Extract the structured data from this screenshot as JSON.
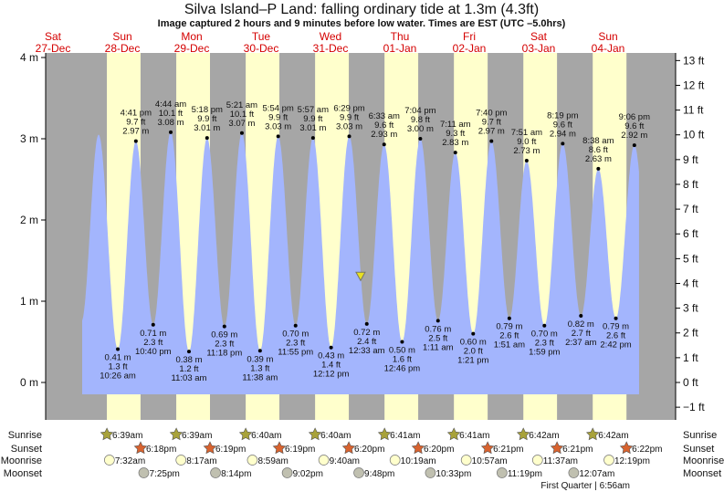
{
  "header": {
    "title": "Silva Island–P Land: falling  ordinary tide at 1.3m (4.3ft)",
    "subtitle": "Image captured 2 hours and 9 minutes before low water. Times are EST (UTC –5.0hrs)"
  },
  "colors": {
    "night": "#a6a6a6",
    "day": "#ffffcc",
    "water": "#a3b5fd",
    "day_label": "#d40000",
    "sunrise": "#a8a23a",
    "sunset": "#d8632f",
    "moonrise": "#ffffcc",
    "moonset": "#c0c0b0",
    "marker": "#e8e020"
  },
  "chart_data": {
    "type": "area",
    "title": "Silva Island–P Land: falling  ordinary tide at 1.3m (4.3ft)",
    "ylabel_left": "m",
    "ylabel_right": "ft",
    "ylim_m": [
      -0.46,
      4.05
    ],
    "left_ticks": [
      "0 m",
      "1 m",
      "2 m",
      "3 m",
      "4 m"
    ],
    "right_ticks": [
      "−1 ft",
      "0 ft",
      "1 ft",
      "2 ft",
      "3 ft",
      "4 ft",
      "5 ft",
      "6 ft",
      "7 ft",
      "8 ft",
      "9 ft",
      "10 ft",
      "11 ft",
      "12 ft",
      "13 ft"
    ],
    "days": [
      {
        "dow": "Sat",
        "date": "27-Dec"
      },
      {
        "dow": "Sun",
        "date": "28-Dec"
      },
      {
        "dow": "Mon",
        "date": "29-Dec"
      },
      {
        "dow": "Tue",
        "date": "30-Dec"
      },
      {
        "dow": "Wed",
        "date": "31-Dec"
      },
      {
        "dow": "Thu",
        "date": "01-Jan"
      },
      {
        "dow": "Fri",
        "date": "02-Jan"
      },
      {
        "dow": "Sat",
        "date": "03-Jan"
      },
      {
        "dow": "Sun",
        "date": "04-Jan"
      }
    ],
    "curve_extent": [
      {
        "date": "27-Dec",
        "time": "9:50 pm",
        "m": 0.75
      },
      {
        "date": "28-Dec",
        "time": "3:47 am",
        "m": 3.05
      },
      {
        "date": "05-Jan",
        "time": "3:15 am",
        "m": 0.85
      }
    ],
    "tides": [
      {
        "type": "low",
        "date": "28-Dec",
        "time": "10:26 am",
        "ft": "1.3 ft",
        "m": 0.41,
        "m_label": "0.41 m"
      },
      {
        "type": "high",
        "date": "28-Dec",
        "time": "4:41 pm",
        "ft": "9.7 ft",
        "m": 2.97,
        "m_label": "2.97 m"
      },
      {
        "type": "low",
        "date": "28-Dec",
        "time": "10:40 pm",
        "ft": "2.3 ft",
        "m": 0.71,
        "m_label": "0.71 m"
      },
      {
        "type": "high",
        "date": "29-Dec",
        "time": "4:44 am",
        "ft": "10.1 ft",
        "m": 3.08,
        "m_label": "3.08 m"
      },
      {
        "type": "low",
        "date": "29-Dec",
        "time": "11:03 am",
        "ft": "1.2 ft",
        "m": 0.38,
        "m_label": "0.38 m"
      },
      {
        "type": "high",
        "date": "29-Dec",
        "time": "5:18 pm",
        "ft": "9.9 ft",
        "m": 3.01,
        "m_label": "3.01 m"
      },
      {
        "type": "low",
        "date": "29-Dec",
        "time": "11:18 pm",
        "ft": "2.3 ft",
        "m": 0.69,
        "m_label": "0.69 m"
      },
      {
        "type": "high",
        "date": "30-Dec",
        "time": "5:21 am",
        "ft": "10.1 ft",
        "m": 3.07,
        "m_label": "3.07 m"
      },
      {
        "type": "low",
        "date": "30-Dec",
        "time": "11:38 am",
        "ft": "1.3 ft",
        "m": 0.39,
        "m_label": "0.39 m"
      },
      {
        "type": "high",
        "date": "30-Dec",
        "time": "5:54 pm",
        "ft": "9.9 ft",
        "m": 3.03,
        "m_label": "3.03 m"
      },
      {
        "type": "low",
        "date": "30-Dec",
        "time": "11:55 pm",
        "ft": "2.3 ft",
        "m": 0.7,
        "m_label": "0.70 m"
      },
      {
        "type": "high",
        "date": "31-Dec",
        "time": "5:57 am",
        "ft": "9.9 ft",
        "m": 3.01,
        "m_label": "3.01 m"
      },
      {
        "type": "low",
        "date": "31-Dec",
        "time": "12:12 pm",
        "ft": "1.4 ft",
        "m": 0.43,
        "m_label": "0.43 m"
      },
      {
        "type": "high",
        "date": "31-Dec",
        "time": "6:29 pm",
        "ft": "9.9 ft",
        "m": 3.03,
        "m_label": "3.03 m"
      },
      {
        "type": "low",
        "date": "01-Jan",
        "time": "12:33 am",
        "ft": "2.4 ft",
        "m": 0.72,
        "m_label": "0.72 m"
      },
      {
        "type": "high",
        "date": "01-Jan",
        "time": "6:33 am",
        "ft": "9.6 ft",
        "m": 2.93,
        "m_label": "2.93 m"
      },
      {
        "type": "low",
        "date": "01-Jan",
        "time": "12:46 pm",
        "ft": "1.6 ft",
        "m": 0.5,
        "m_label": "0.50 m"
      },
      {
        "type": "high",
        "date": "01-Jan",
        "time": "7:04 pm",
        "ft": "9.8 ft",
        "m": 3.0,
        "m_label": "3.00 m"
      },
      {
        "type": "low",
        "date": "02-Jan",
        "time": "1:11 am",
        "ft": "2.5 ft",
        "m": 0.76,
        "m_label": "0.76 m"
      },
      {
        "type": "high",
        "date": "02-Jan",
        "time": "7:11 am",
        "ft": "9.3 ft",
        "m": 2.83,
        "m_label": "2.83 m"
      },
      {
        "type": "low",
        "date": "02-Jan",
        "time": "1:21 pm",
        "ft": "2.0 ft",
        "m": 0.6,
        "m_label": "0.60 m"
      },
      {
        "type": "high",
        "date": "02-Jan",
        "time": "7:40 pm",
        "ft": "9.7 ft",
        "m": 2.97,
        "m_label": "2.97 m"
      },
      {
        "type": "low",
        "date": "03-Jan",
        "time": "1:51 am",
        "ft": "2.6 ft",
        "m": 0.79,
        "m_label": "0.79 m"
      },
      {
        "type": "high",
        "date": "03-Jan",
        "time": "7:51 am",
        "ft": "9.0 ft",
        "m": 2.73,
        "m_label": "2.73 m"
      },
      {
        "type": "low",
        "date": "03-Jan",
        "time": "1:59 pm",
        "ft": "2.3 ft",
        "m": 0.7,
        "m_label": "0.70 m"
      },
      {
        "type": "high",
        "date": "03-Jan",
        "time": "8:19 pm",
        "ft": "9.6 ft",
        "m": 2.94,
        "m_label": "2.94 m"
      },
      {
        "type": "low",
        "date": "04-Jan",
        "time": "2:37 am",
        "ft": "2.7 ft",
        "m": 0.82,
        "m_label": "0.82 m"
      },
      {
        "type": "high",
        "date": "04-Jan",
        "time": "8:38 am",
        "ft": "8.6 ft",
        "m": 2.63,
        "m_label": "2.63 m"
      },
      {
        "type": "low",
        "date": "04-Jan",
        "time": "2:42 pm",
        "ft": "2.6 ft",
        "m": 0.79,
        "m_label": "0.79 m"
      },
      {
        "type": "high",
        "date": "04-Jan",
        "time": "9:06 pm",
        "ft": "9.6 ft",
        "m": 2.92,
        "m_label": "2.92 m"
      }
    ],
    "current": {
      "date": "31-Dec",
      "time": "10:24 pm",
      "m": 1.3
    }
  },
  "astro": {
    "rows": [
      {
        "key": "sunrise",
        "label": "Sunrise",
        "events": [
          {
            "date": "28-Dec",
            "time": "6:39am"
          },
          {
            "date": "29-Dec",
            "time": "6:39am"
          },
          {
            "date": "30-Dec",
            "time": "6:40am"
          },
          {
            "date": "31-Dec",
            "time": "6:40am"
          },
          {
            "date": "01-Jan",
            "time": "6:41am"
          },
          {
            "date": "02-Jan",
            "time": "6:41am"
          },
          {
            "date": "03-Jan",
            "time": "6:42am"
          },
          {
            "date": "04-Jan",
            "time": "6:42am"
          }
        ]
      },
      {
        "key": "sunset",
        "label": "Sunset",
        "events": [
          {
            "date": "28-Dec",
            "time": "6:18pm"
          },
          {
            "date": "29-Dec",
            "time": "6:19pm"
          },
          {
            "date": "30-Dec",
            "time": "6:19pm"
          },
          {
            "date": "31-Dec",
            "time": "6:20pm"
          },
          {
            "date": "01-Jan",
            "time": "6:20pm"
          },
          {
            "date": "02-Jan",
            "time": "6:21pm"
          },
          {
            "date": "03-Jan",
            "time": "6:21pm"
          },
          {
            "date": "04-Jan",
            "time": "6:22pm"
          }
        ]
      },
      {
        "key": "moonrise",
        "label": "Moonrise",
        "events": [
          {
            "date": "28-Dec",
            "time": "7:32am"
          },
          {
            "date": "29-Dec",
            "time": "8:17am"
          },
          {
            "date": "30-Dec",
            "time": "8:59am"
          },
          {
            "date": "31-Dec",
            "time": "9:40am"
          },
          {
            "date": "01-Jan",
            "time": "10:19am"
          },
          {
            "date": "02-Jan",
            "time": "10:57am"
          },
          {
            "date": "03-Jan",
            "time": "11:37am"
          },
          {
            "date": "04-Jan",
            "time": "12:19pm"
          }
        ]
      },
      {
        "key": "moonset",
        "label": "Moonset",
        "events": [
          {
            "date": "28-Dec",
            "time": "7:25pm"
          },
          {
            "date": "29-Dec",
            "time": "8:14pm"
          },
          {
            "date": "30-Dec",
            "time": "9:02pm"
          },
          {
            "date": "31-Dec",
            "time": "9:48pm"
          },
          {
            "date": "01-Jan",
            "time": "10:33pm"
          },
          {
            "date": "02-Jan",
            "time": "11:19pm"
          },
          {
            "date": "04-Jan",
            "time": "12:07am"
          }
        ]
      }
    ],
    "moon_phase": "First Quarter | 6:56am"
  }
}
